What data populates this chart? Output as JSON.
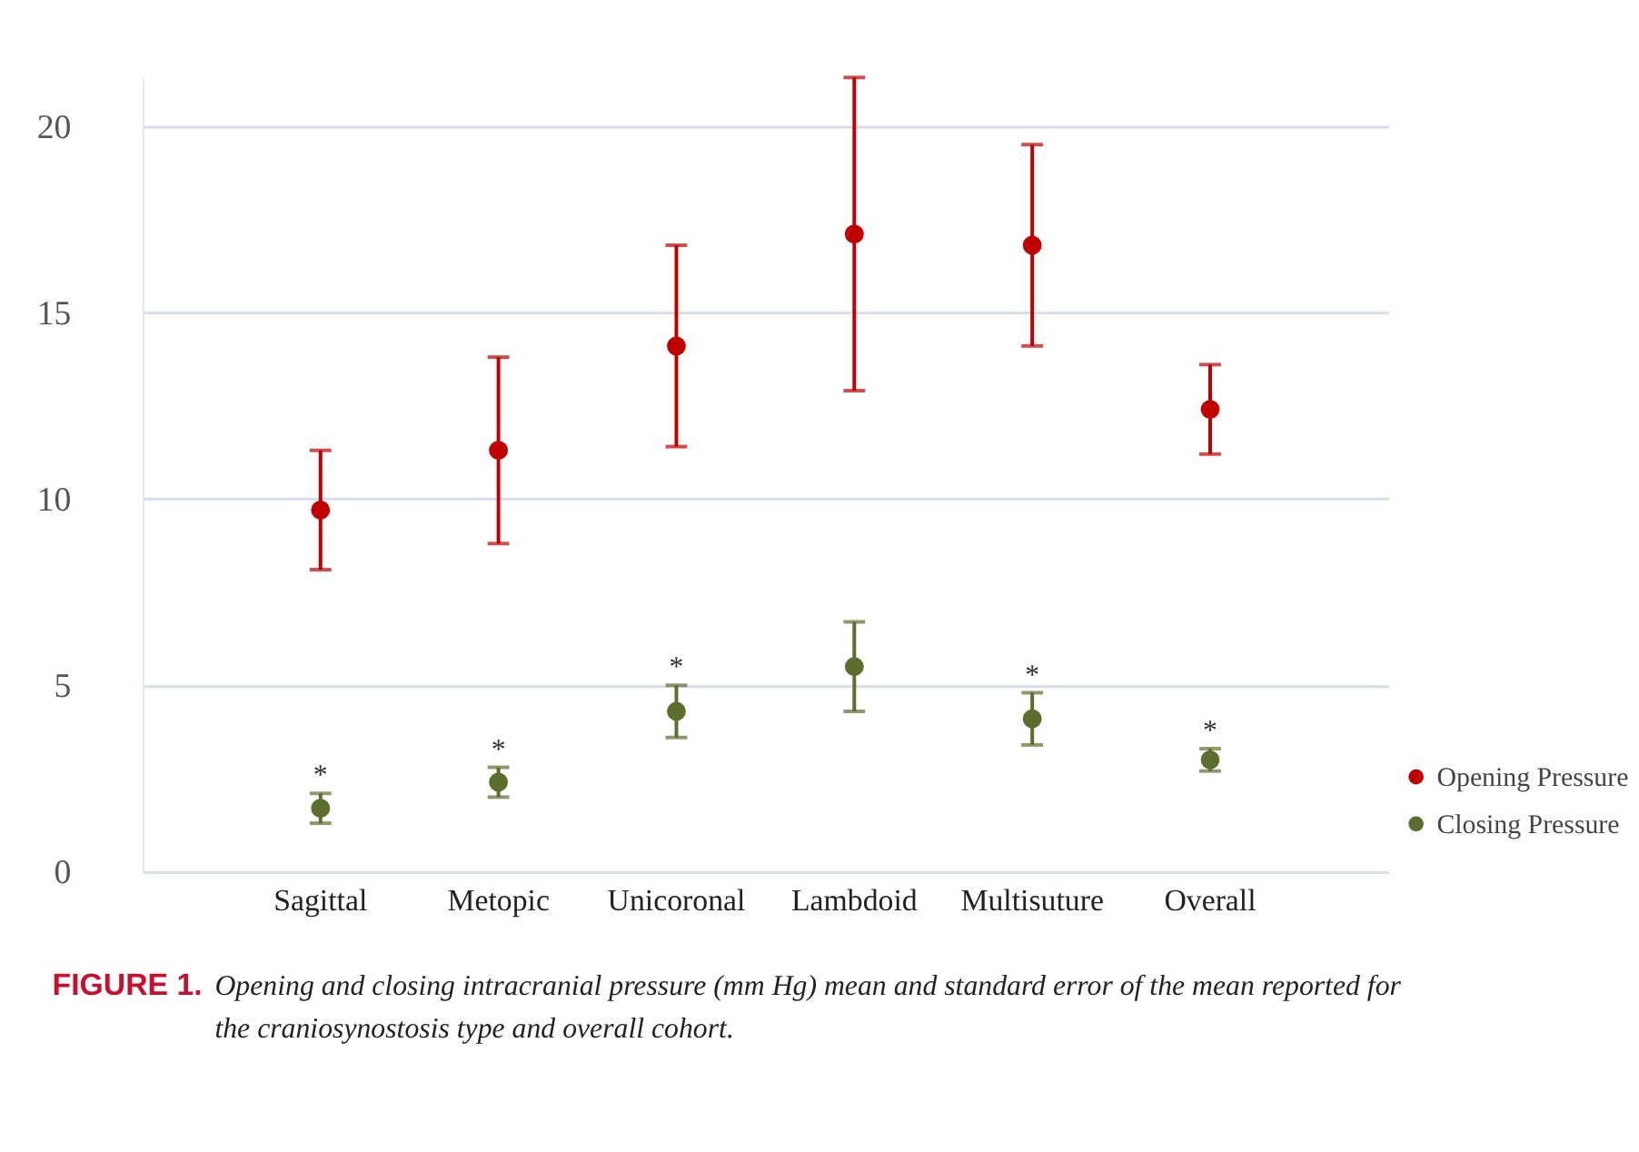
{
  "chart_data": {
    "type": "scatter",
    "categories": [
      "Sagittal",
      "Metopic",
      "Unicoronal",
      "Lambdoid",
      "Multisuture",
      "Overall"
    ],
    "series": [
      {
        "name": "Opening Pressure",
        "color": "#c00000",
        "values": [
          9.7,
          11.3,
          14.1,
          17.1,
          16.8,
          12.4
        ],
        "errors": [
          1.6,
          2.5,
          2.7,
          4.2,
          2.7,
          1.2
        ]
      },
      {
        "name": "Closing Pressure",
        "color": "#5b6e2e",
        "values": [
          1.7,
          2.4,
          4.3,
          5.5,
          4.1,
          3.0
        ],
        "errors": [
          0.4,
          0.4,
          0.7,
          1.2,
          0.7,
          0.3
        ]
      }
    ],
    "ylim": [
      0,
      21.3
    ],
    "yticks": [
      0,
      5,
      10,
      15,
      20
    ],
    "grid": "y",
    "legend": "bottom right",
    "marker": "circle",
    "annotations": [
      {
        "text": "*",
        "x": "Sagittal",
        "y": 1.7
      },
      {
        "text": "*",
        "x": "Metopic",
        "y": 2.4
      },
      {
        "text": "*",
        "x": "Unicoronal",
        "y": 4.3
      },
      {
        "text": "*",
        "x": "Multisuture",
        "y": 4.1
      },
      {
        "text": "*",
        "x": "Overall",
        "y": 3.0
      },
      "FIGURE 1.",
      "Opening and closing intracranial pressure (mm Hg) mean and standard error of the mean reported for the craniosynostosis type and overall cohort."
    ]
  }
}
